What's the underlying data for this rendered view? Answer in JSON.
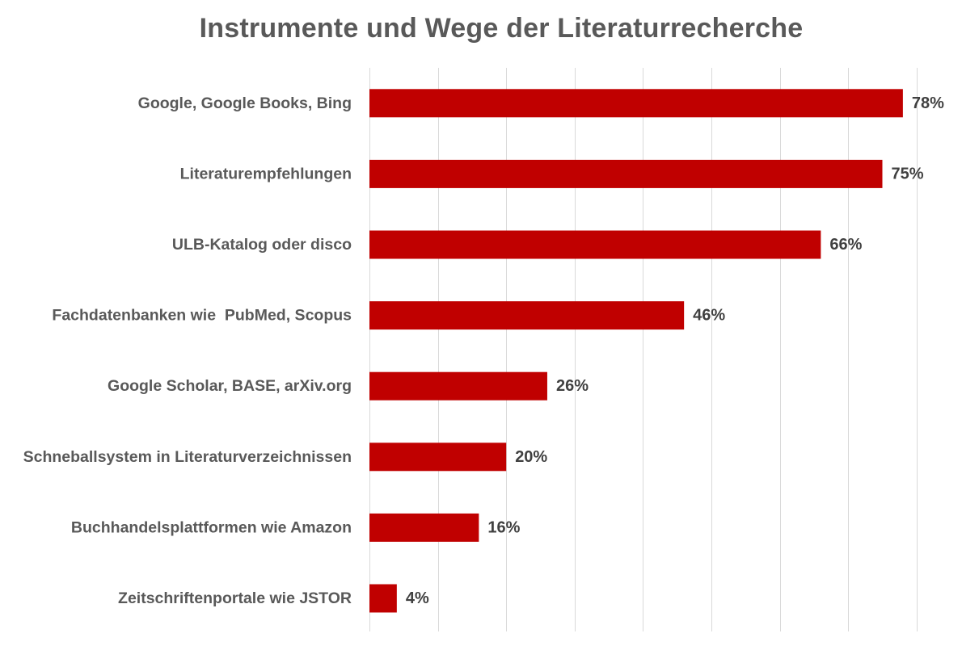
{
  "chart_data": {
    "type": "bar",
    "orientation": "horizontal",
    "title": "Instrumente und Wege der Literaturrecherche",
    "categories": [
      "Google, Google Books, Bing",
      "Literaturempfehlungen",
      "ULB-Katalog oder disco",
      "Fachdatenbanken wie  PubMed, Scopus",
      "Google Scholar, BASE, arXiv.org",
      "Schneballsystem in Literaturverzeichnissen",
      "Buchhandelsplattformen wie Amazon",
      "Zeitschriftenportale wie JSTOR"
    ],
    "values": [
      78,
      75,
      66,
      46,
      26,
      20,
      16,
      4
    ],
    "value_labels": [
      "78%",
      "75%",
      "66%",
      "46%",
      "26%",
      "20%",
      "16%",
      "4%"
    ],
    "xlabel": "",
    "ylabel": "",
    "xlim": [
      0,
      80
    ],
    "grid": "vertical",
    "legend": "none",
    "colors": {
      "bar": "#C00000",
      "text": "#595959",
      "label": "#404040",
      "grid": "#D9D9D9"
    }
  }
}
